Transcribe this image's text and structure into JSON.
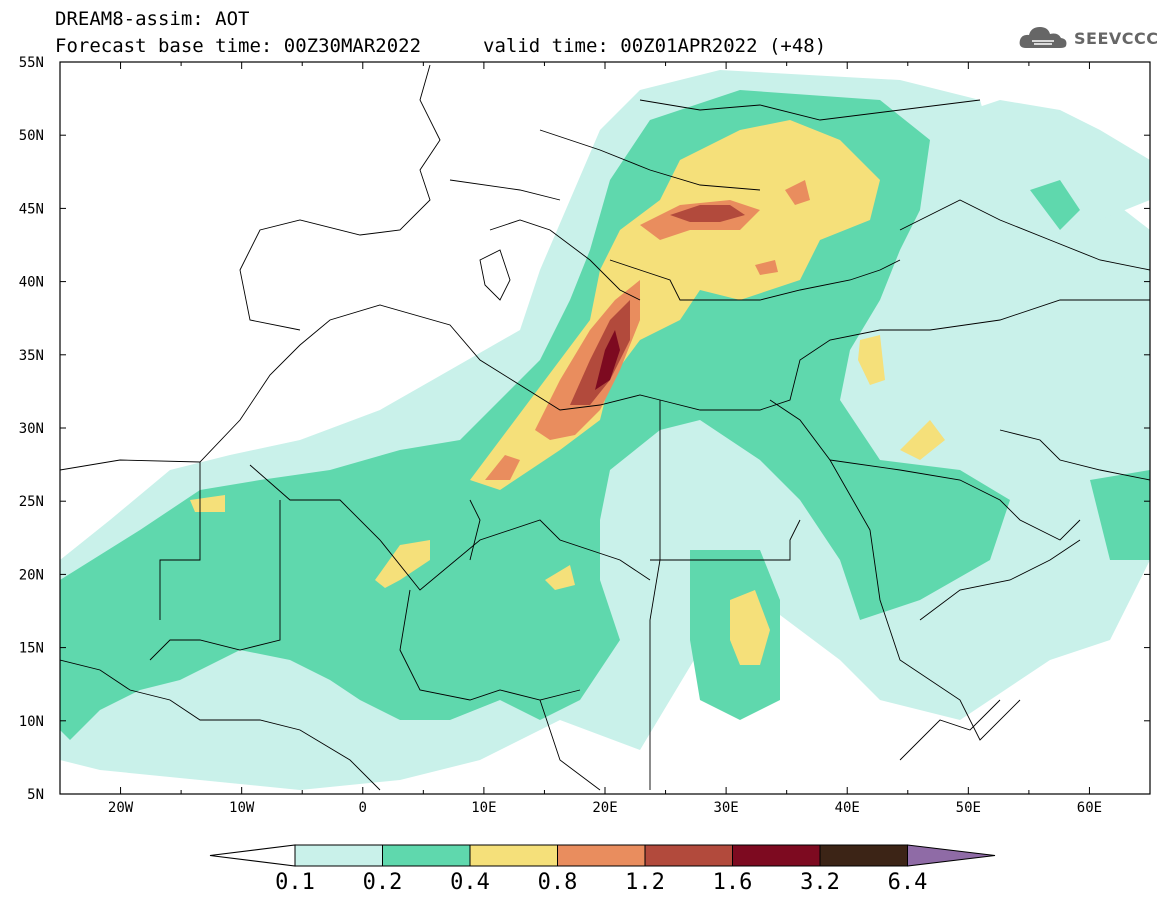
{
  "header": {
    "title": "DREAM8-assim: AOT",
    "base_time": "Forecast base time: 00Z30MAR2022",
    "valid_time": "valid time: 00Z01APR2022 (+48)"
  },
  "logo": {
    "name": "SEEVCCC",
    "icon": "cloud-icon"
  },
  "axes": {
    "lon_labels": [
      "20W",
      "10W",
      "0",
      "10E",
      "20E",
      "30E",
      "40E",
      "50E",
      "60E"
    ],
    "lat_labels": [
      "55N",
      "50N",
      "45N",
      "40N",
      "35N",
      "30N",
      "25N",
      "20N",
      "15N",
      "10N",
      "5N"
    ],
    "lon_range": [
      -25,
      65
    ],
    "lat_range": [
      5,
      55
    ]
  },
  "colorbar": {
    "labels": [
      "0.1",
      "0.2",
      "0.4",
      "0.8",
      "1.2",
      "1.6",
      "3.2",
      "6.4"
    ],
    "colors": [
      "#ffffff",
      "#c9f1ea",
      "#5fd8ad",
      "#f5e07a",
      "#e98d5e",
      "#b24a3c",
      "#7d0a20",
      "#3c2416",
      "#8f6ba6"
    ]
  }
}
